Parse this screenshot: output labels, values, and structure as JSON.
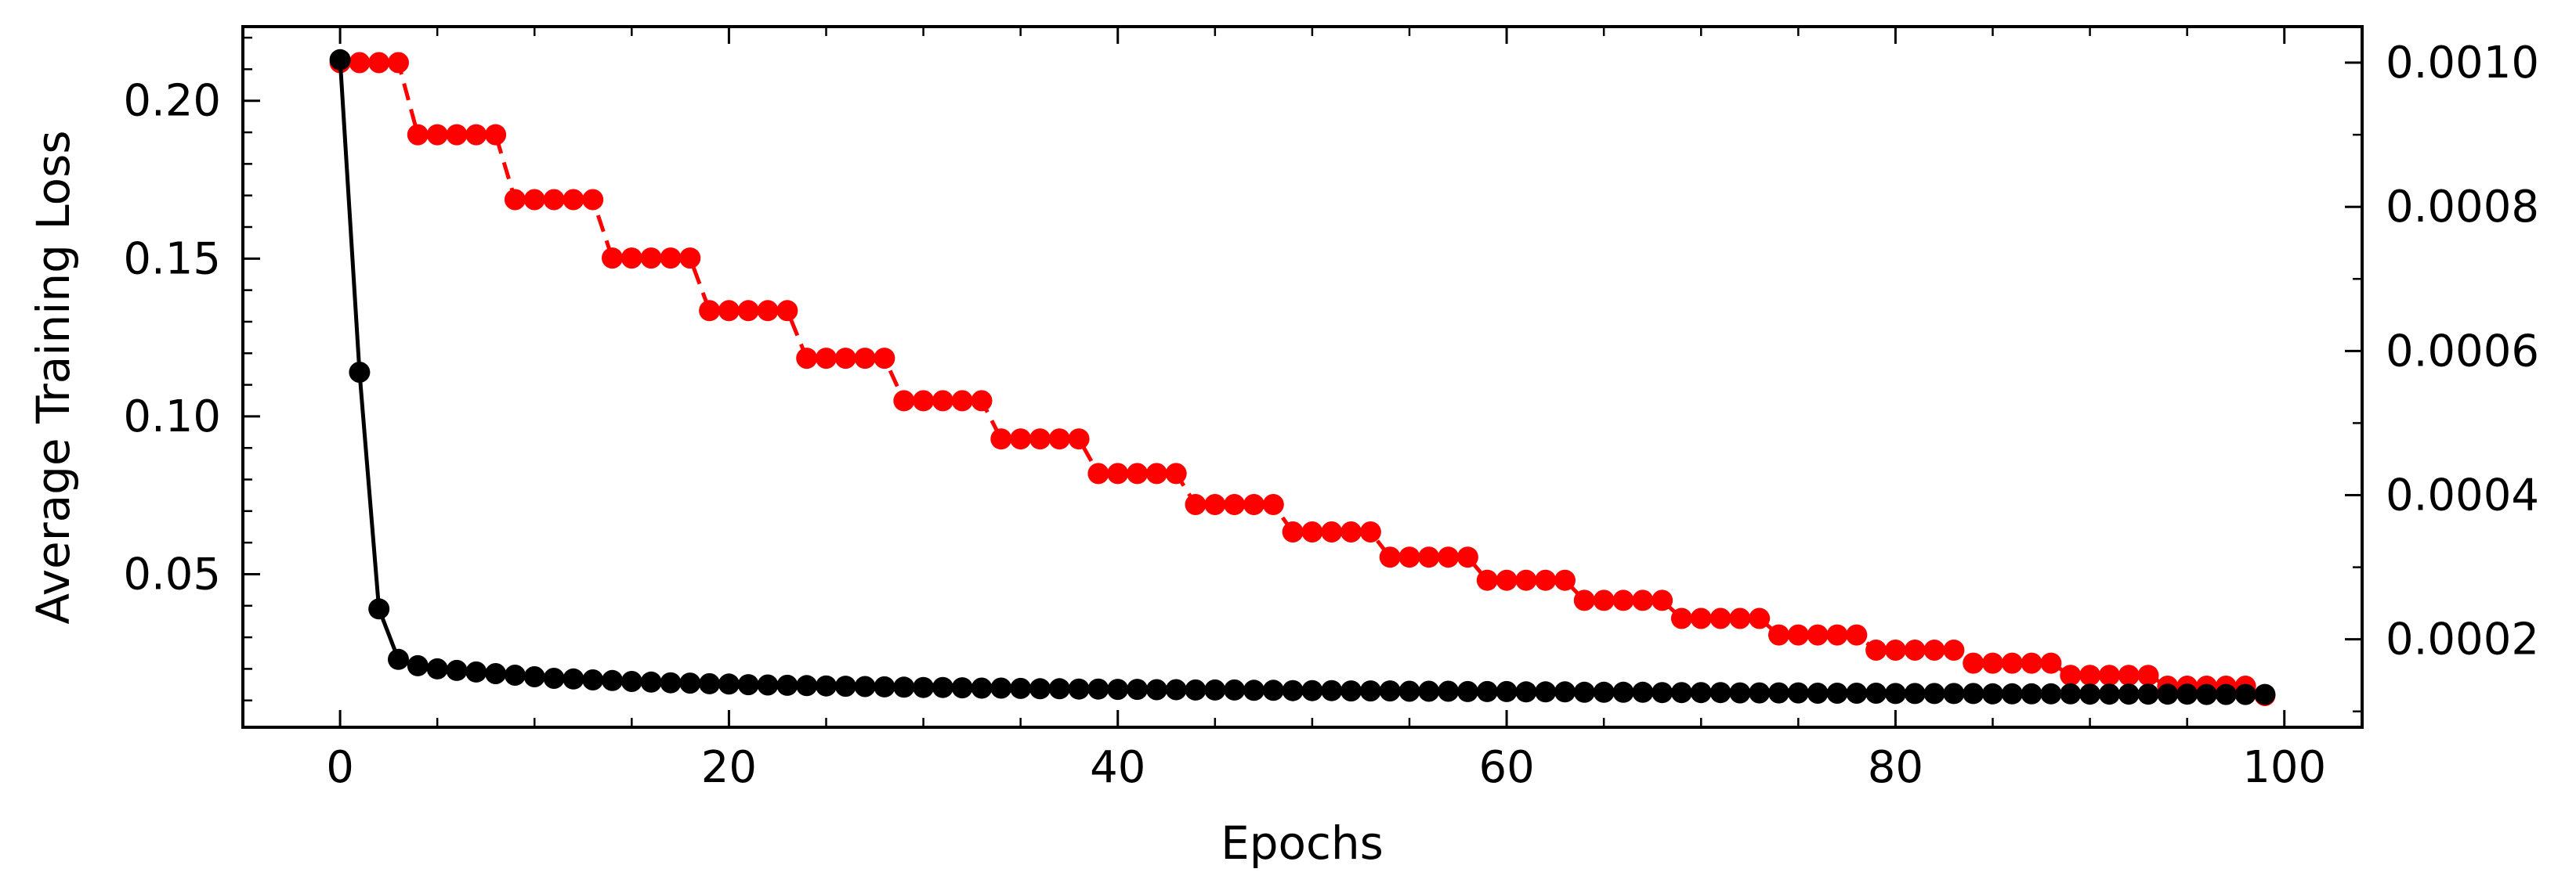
{
  "chart_data": {
    "type": "line",
    "title": "",
    "xlabel": "Epochs",
    "ylabel": "Average Training Loss",
    "y2label": "",
    "xlim": [
      -5,
      104
    ],
    "ylim": [
      0.0015,
      0.2235
    ],
    "y2lim": [
      7.8e-05,
      0.00105
    ],
    "grid": false,
    "x_ticks": [
      0,
      20,
      40,
      60,
      80,
      100
    ],
    "x_tick_labels": [
      "0",
      "20",
      "40",
      "60",
      "80",
      "100"
    ],
    "y_ticks": [
      0.05,
      0.1,
      0.15,
      0.2
    ],
    "y_tick_labels": [
      "0.05",
      "0.10",
      "0.15",
      "0.20"
    ],
    "y2_ticks": [
      0.0002,
      0.0004,
      0.0006,
      0.0008,
      0.001
    ],
    "y2_tick_labels": [
      "0.0002",
      "0.0004",
      "0.0006",
      "0.0008",
      "0.0010"
    ],
    "series": [
      {
        "axis": "left",
        "color": "#000000",
        "style": "solid",
        "marker": "circle",
        "x": [
          0,
          1,
          2,
          3,
          4,
          5,
          6,
          7,
          8,
          9,
          10,
          11,
          12,
          13,
          14,
          15,
          16,
          17,
          18,
          19,
          20,
          21,
          22,
          23,
          24,
          25,
          26,
          27,
          28,
          29,
          30,
          31,
          32,
          33,
          34,
          35,
          36,
          37,
          38,
          39,
          40,
          41,
          42,
          43,
          44,
          45,
          46,
          47,
          48,
          49,
          50,
          51,
          52,
          53,
          54,
          55,
          56,
          57,
          58,
          59,
          60,
          61,
          62,
          63,
          64,
          65,
          66,
          67,
          68,
          69,
          70,
          71,
          72,
          73,
          74,
          75,
          76,
          77,
          78,
          79,
          80,
          81,
          82,
          83,
          84,
          85,
          86,
          87,
          88,
          89,
          90,
          91,
          92,
          93,
          94,
          95,
          96,
          97,
          98,
          99
        ],
        "values": [
          0.213,
          0.114,
          0.039,
          0.023,
          0.021,
          0.02,
          0.0195,
          0.019,
          0.0185,
          0.018,
          0.0175,
          0.017,
          0.0168,
          0.0165,
          0.0163,
          0.016,
          0.0158,
          0.0156,
          0.0155,
          0.0153,
          0.0152,
          0.015,
          0.0149,
          0.0148,
          0.0147,
          0.0146,
          0.0145,
          0.0144,
          0.0143,
          0.0142,
          0.0141,
          0.0141,
          0.014,
          0.0139,
          0.0139,
          0.0138,
          0.0137,
          0.0137,
          0.0136,
          0.0136,
          0.0135,
          0.0135,
          0.0134,
          0.0134,
          0.0133,
          0.0133,
          0.0133,
          0.0132,
          0.0132,
          0.0131,
          0.0131,
          0.0131,
          0.013,
          0.013,
          0.013,
          0.0129,
          0.0129,
          0.0129,
          0.0128,
          0.0128,
          0.0128,
          0.0127,
          0.0127,
          0.0127,
          0.0126,
          0.0126,
          0.0126,
          0.0126,
          0.0125,
          0.0125,
          0.0125,
          0.0125,
          0.0124,
          0.0124,
          0.0124,
          0.0124,
          0.0123,
          0.0123,
          0.0123,
          0.0123,
          0.0122,
          0.0122,
          0.0122,
          0.0122,
          0.0122,
          0.0121,
          0.0121,
          0.0121,
          0.0121,
          0.0121,
          0.012,
          0.012,
          0.012,
          0.012,
          0.012,
          0.012,
          0.0119,
          0.0119,
          0.0119,
          0.0119
        ]
      },
      {
        "axis": "right",
        "color": "#ff0000",
        "style": "dashed",
        "marker": "circle",
        "x": [
          0,
          1,
          2,
          3,
          4,
          5,
          6,
          7,
          8,
          9,
          10,
          11,
          12,
          13,
          14,
          15,
          16,
          17,
          18,
          19,
          20,
          21,
          22,
          23,
          24,
          25,
          26,
          27,
          28,
          29,
          30,
          31,
          32,
          33,
          34,
          35,
          36,
          37,
          38,
          39,
          40,
          41,
          42,
          43,
          44,
          45,
          46,
          47,
          48,
          49,
          50,
          51,
          52,
          53,
          54,
          55,
          56,
          57,
          58,
          59,
          60,
          61,
          62,
          63,
          64,
          65,
          66,
          67,
          68,
          69,
          70,
          71,
          72,
          73,
          74,
          75,
          76,
          77,
          78,
          79,
          80,
          81,
          82,
          83,
          84,
          85,
          86,
          87,
          88,
          89,
          90,
          91,
          92,
          93,
          94,
          95,
          96,
          97,
          98,
          99
        ],
        "values": [
          0.001,
          0.001,
          0.001,
          0.001,
          0.0009,
          0.0009,
          0.0009,
          0.0009,
          0.0009,
          0.00081,
          0.00081,
          0.00081,
          0.00081,
          0.00081,
          0.000729,
          0.000729,
          0.000729,
          0.000729,
          0.000729,
          0.000656,
          0.000656,
          0.000656,
          0.000656,
          0.000656,
          0.00059,
          0.00059,
          0.00059,
          0.00059,
          0.00059,
          0.000531,
          0.000531,
          0.000531,
          0.000531,
          0.000531,
          0.000478,
          0.000478,
          0.000478,
          0.000478,
          0.000478,
          0.00043,
          0.00043,
          0.00043,
          0.00043,
          0.00043,
          0.000387,
          0.000387,
          0.000387,
          0.000387,
          0.000387,
          0.000349,
          0.000349,
          0.000349,
          0.000349,
          0.000349,
          0.000314,
          0.000314,
          0.000314,
          0.000314,
          0.000314,
          0.000282,
          0.000282,
          0.000282,
          0.000282,
          0.000282,
          0.000254,
          0.000254,
          0.000254,
          0.000254,
          0.000254,
          0.000229,
          0.000229,
          0.000229,
          0.000229,
          0.000229,
          0.000206,
          0.000206,
          0.000206,
          0.000206,
          0.000206,
          0.000185,
          0.000185,
          0.000185,
          0.000185,
          0.000185,
          0.000167,
          0.000167,
          0.000167,
          0.000167,
          0.000167,
          0.00015,
          0.00015,
          0.00015,
          0.00015,
          0.00015,
          0.000135,
          0.000135,
          0.000135,
          0.000135,
          0.000135,
          0.000122
        ]
      }
    ]
  }
}
